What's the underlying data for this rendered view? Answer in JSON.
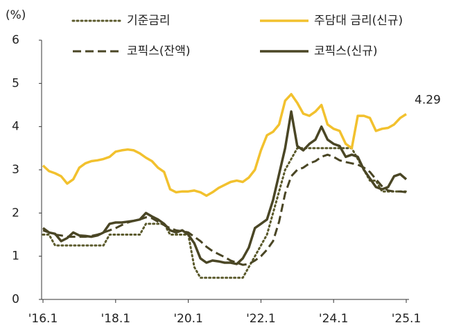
{
  "chart_data": {
    "type": "line",
    "y_label": "(%)",
    "categories": [
      "'16.1",
      null,
      null,
      null,
      null,
      null,
      null,
      null,
      null,
      null,
      null,
      null,
      "'18.1",
      null,
      null,
      null,
      null,
      null,
      null,
      null,
      null,
      null,
      null,
      null,
      "'20.1",
      null,
      null,
      null,
      null,
      null,
      null,
      null,
      null,
      null,
      null,
      null,
      "'22.1",
      null,
      null,
      null,
      null,
      null,
      null,
      null,
      null,
      null,
      null,
      null,
      "'24.1",
      null,
      null,
      null,
      null,
      null,
      null,
      null,
      null,
      null,
      null,
      null,
      "'25.1"
    ],
    "series": [
      {
        "name": "기준금리",
        "color": "#5b5a2c",
        "dash": "dotted",
        "values": [
          1.5,
          1.5,
          1.25,
          1.25,
          1.25,
          1.25,
          1.25,
          1.25,
          1.25,
          1.25,
          1.25,
          1.5,
          1.5,
          1.5,
          1.5,
          1.5,
          1.5,
          1.75,
          1.75,
          1.75,
          1.75,
          1.5,
          1.5,
          1.5,
          1.5,
          0.75,
          0.5,
          0.5,
          0.5,
          0.5,
          0.5,
          0.5,
          0.5,
          0.5,
          0.75,
          1.0,
          1.25,
          1.5,
          2.0,
          2.5,
          3.0,
          3.25,
          3.5,
          3.5,
          3.5,
          3.5,
          3.5,
          3.5,
          3.5,
          3.5,
          3.5,
          3.5,
          3.25,
          3.0,
          2.75,
          2.75,
          2.5,
          2.5,
          2.5,
          2.5,
          2.5
        ]
      },
      {
        "name": "주담대 금리(신규)",
        "color": "#f2c12e",
        "dash": "solid",
        "label_last": true,
        "values": [
          3.1,
          2.97,
          2.92,
          2.85,
          2.68,
          2.78,
          3.05,
          3.15,
          3.2,
          3.22,
          3.25,
          3.3,
          3.42,
          3.45,
          3.47,
          3.45,
          3.38,
          3.28,
          3.2,
          3.05,
          2.95,
          2.55,
          2.48,
          2.5,
          2.5,
          2.52,
          2.48,
          2.4,
          2.48,
          2.58,
          2.65,
          2.72,
          2.75,
          2.72,
          2.82,
          3.0,
          3.45,
          3.8,
          3.88,
          4.05,
          4.6,
          4.75,
          4.55,
          4.3,
          4.25,
          4.35,
          4.5,
          4.05,
          3.95,
          3.9,
          3.6,
          3.5,
          4.25,
          4.25,
          4.2,
          3.9,
          3.95,
          3.97,
          4.05,
          4.2,
          4.29
        ]
      },
      {
        "name": "코픽스(잔액)",
        "color": "#4a4625",
        "dash": "dashed",
        "values": [
          1.6,
          1.55,
          1.5,
          1.48,
          1.45,
          1.45,
          1.45,
          1.45,
          1.47,
          1.5,
          1.55,
          1.6,
          1.65,
          1.72,
          1.78,
          1.82,
          1.85,
          1.9,
          1.88,
          1.8,
          1.72,
          1.65,
          1.6,
          1.58,
          1.55,
          1.45,
          1.35,
          1.22,
          1.12,
          1.05,
          0.98,
          0.9,
          0.85,
          0.8,
          0.82,
          0.9,
          1.0,
          1.15,
          1.35,
          1.8,
          2.45,
          2.85,
          3.0,
          3.05,
          3.15,
          3.2,
          3.3,
          3.35,
          3.3,
          3.22,
          3.18,
          3.15,
          3.12,
          3.05,
          2.95,
          2.78,
          2.62,
          2.52,
          2.5,
          2.5,
          2.48
        ]
      },
      {
        "name": "코픽스(신규)",
        "color": "#4a4625",
        "dash": "solid",
        "values": [
          1.65,
          1.55,
          1.52,
          1.35,
          1.42,
          1.55,
          1.48,
          1.47,
          1.45,
          1.48,
          1.55,
          1.75,
          1.78,
          1.78,
          1.8,
          1.82,
          1.85,
          2.0,
          1.92,
          1.85,
          1.75,
          1.6,
          1.55,
          1.6,
          1.5,
          1.3,
          0.95,
          0.85,
          0.9,
          0.88,
          0.85,
          0.85,
          0.82,
          0.95,
          1.2,
          1.65,
          1.75,
          1.85,
          2.3,
          2.9,
          3.5,
          4.35,
          3.55,
          3.45,
          3.6,
          3.7,
          4.0,
          3.7,
          3.6,
          3.55,
          3.3,
          3.35,
          3.3,
          3.0,
          2.8,
          2.6,
          2.55,
          2.6,
          2.85,
          2.9,
          2.78
        ]
      }
    ],
    "ylim": [
      0,
      6
    ],
    "yticks": [
      0,
      1,
      2,
      3,
      4,
      5,
      6
    ],
    "grid": false
  }
}
